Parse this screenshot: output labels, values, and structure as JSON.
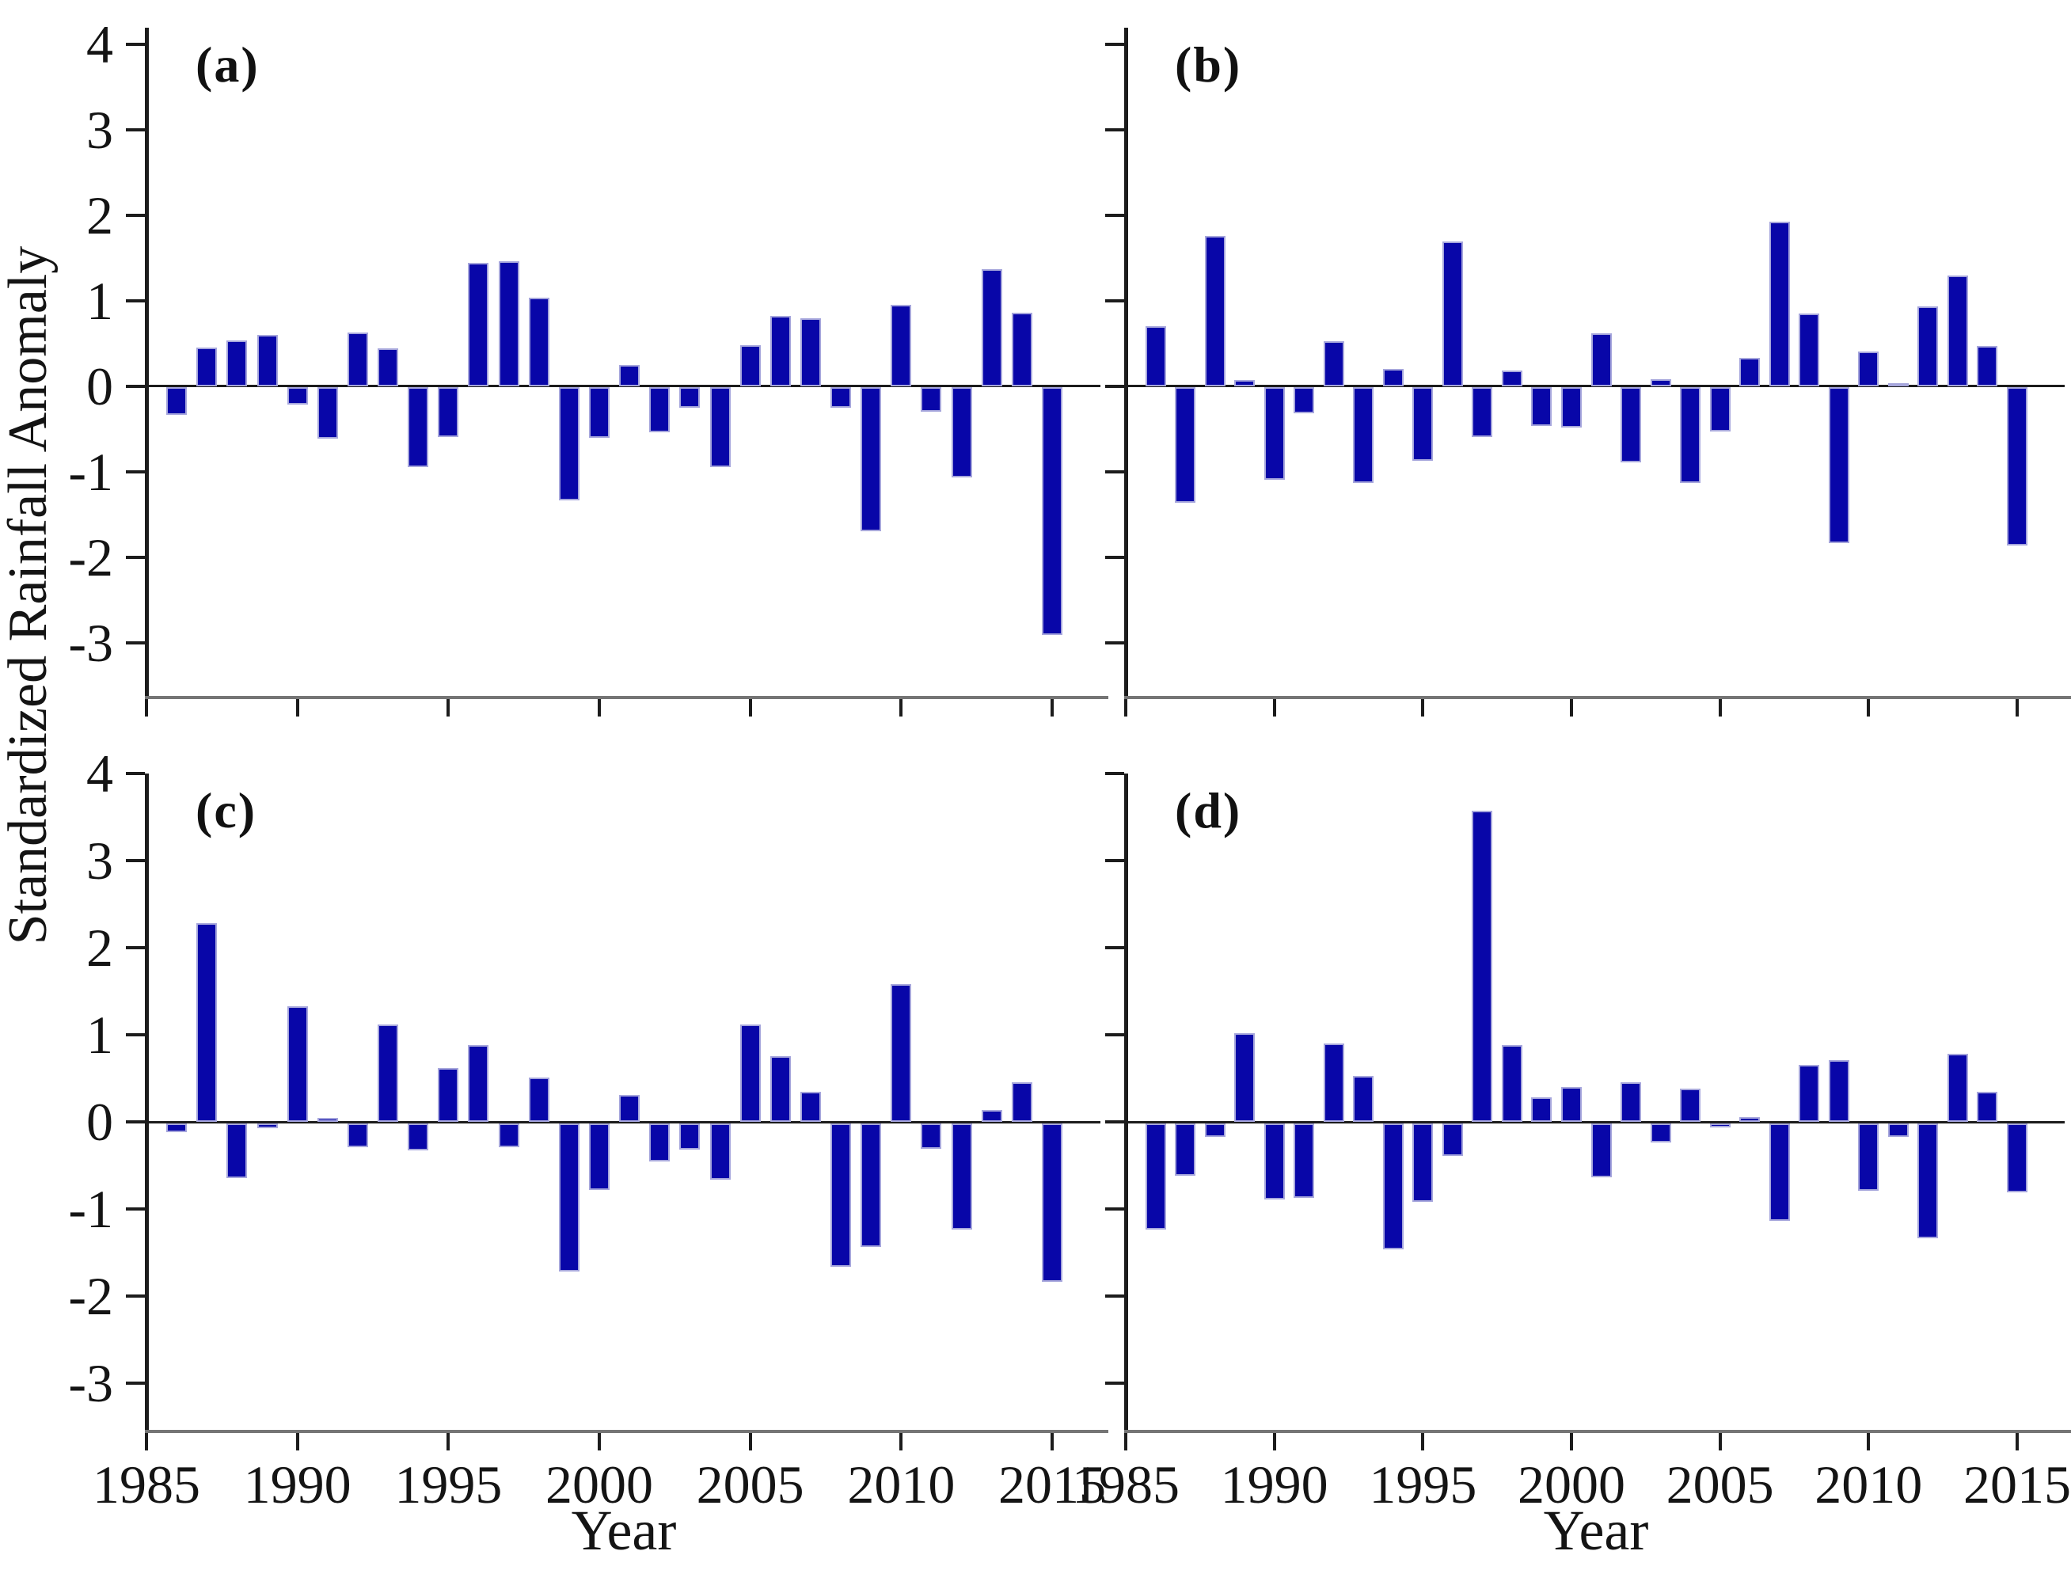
{
  "figure": {
    "y_axis_label": "Standardized Rainfall Anomaly",
    "x_axis_label": "Year",
    "bar_color": "#0806A8",
    "bar_edge_color": "#A6A6DC",
    "axis_color": "#1c1c1c",
    "frame_color": "#757575"
  },
  "chart_data": [
    {
      "type": "bar",
      "panel_label": "(a)",
      "title": "",
      "xlabel": "",
      "ylabel": "Standardized Rainfall Anomaly",
      "x": [
        1986,
        1987,
        1988,
        1989,
        1990,
        1991,
        1992,
        1993,
        1994,
        1995,
        1996,
        1997,
        1998,
        1999,
        2000,
        2001,
        2002,
        2003,
        2004,
        2005,
        2006,
        2007,
        2008,
        2009,
        2010,
        2011,
        2012,
        2013,
        2014,
        2015
      ],
      "values": [
        -0.32,
        0.45,
        0.53,
        0.6,
        -0.2,
        -0.6,
        0.63,
        0.44,
        -0.93,
        -0.58,
        1.44,
        1.46,
        1.03,
        -1.32,
        -0.59,
        0.25,
        -0.53,
        -0.24,
        -0.93,
        0.48,
        0.82,
        0.79,
        -0.24,
        -1.68,
        0.95,
        -0.29,
        -1.05,
        1.37,
        0.86,
        -2.9
      ],
      "ylim": [
        -3.66,
        4.19
      ],
      "yticks": [
        4,
        3,
        2,
        1,
        0,
        -1,
        -2,
        -3
      ],
      "xticks": [
        1985,
        1990,
        1995,
        2000,
        2005,
        2010,
        2015
      ],
      "show_ytick_labels": true,
      "show_xtick_labels": false,
      "grid": false,
      "legend": null
    },
    {
      "type": "bar",
      "panel_label": "(b)",
      "title": "",
      "xlabel": "",
      "ylabel": "",
      "x": [
        1986,
        1987,
        1988,
        1989,
        1990,
        1991,
        1992,
        1993,
        1994,
        1995,
        1996,
        1997,
        1998,
        1999,
        2000,
        2001,
        2002,
        2003,
        2004,
        2005,
        2006,
        2007,
        2008,
        2009,
        2010,
        2011,
        2012,
        2013,
        2014,
        2015
      ],
      "values": [
        0.7,
        -1.35,
        1.76,
        0.07,
        -1.08,
        -0.3,
        0.52,
        -1.12,
        0.2,
        -0.86,
        1.69,
        -0.58,
        0.18,
        -0.45,
        -0.47,
        0.62,
        -0.88,
        0.08,
        -1.12,
        -0.52,
        0.33,
        1.92,
        0.85,
        -1.82,
        0.4,
        0.03,
        0.93,
        1.29,
        0.47,
        -1.85
      ],
      "ylim": [
        -3.66,
        4.19
      ],
      "yticks": [
        4,
        3,
        2,
        1,
        0,
        -1,
        -2,
        -3
      ],
      "xticks": [
        1985,
        1990,
        1995,
        2000,
        2005,
        2010,
        2015
      ],
      "show_ytick_labels": false,
      "show_xtick_labels": false,
      "grid": false,
      "legend": null
    },
    {
      "type": "bar",
      "panel_label": "(c)",
      "title": "",
      "xlabel": "Year",
      "ylabel": "Standardized Rainfall Anomaly",
      "x": [
        1986,
        1987,
        1988,
        1989,
        1990,
        1991,
        1992,
        1993,
        1994,
        1995,
        1996,
        1997,
        1998,
        1999,
        2000,
        2001,
        2002,
        2003,
        2004,
        2005,
        2006,
        2007,
        2008,
        2009,
        2010,
        2011,
        2012,
        2013,
        2014,
        2015
      ],
      "values": [
        -0.1,
        2.28,
        -0.63,
        -0.06,
        1.33,
        0.05,
        -0.28,
        1.12,
        -0.31,
        0.62,
        0.88,
        -0.28,
        0.51,
        -1.7,
        -0.77,
        0.31,
        -0.44,
        -0.3,
        -0.65,
        1.12,
        0.76,
        0.35,
        -1.65,
        -1.42,
        1.58,
        -0.29,
        -1.22,
        0.14,
        0.46,
        -1.82
      ],
      "ylim": [
        -3.57,
        4.0
      ],
      "yticks": [
        4,
        3,
        2,
        1,
        0,
        -1,
        -2,
        -3
      ],
      "xticks": [
        1985,
        1990,
        1995,
        2000,
        2005,
        2010,
        2015
      ],
      "show_ytick_labels": true,
      "show_xtick_labels": true,
      "grid": false,
      "legend": null
    },
    {
      "type": "bar",
      "panel_label": "(d)",
      "title": "",
      "xlabel": "Year",
      "ylabel": "",
      "x": [
        1986,
        1987,
        1988,
        1989,
        1990,
        1991,
        1992,
        1993,
        1994,
        1995,
        1996,
        1997,
        1998,
        1999,
        2000,
        2001,
        2002,
        2003,
        2004,
        2005,
        2006,
        2007,
        2008,
        2009,
        2010,
        2011,
        2012,
        2013,
        2014,
        2015
      ],
      "values": [
        -1.22,
        -0.6,
        -0.16,
        1.02,
        -0.88,
        -0.86,
        0.9,
        0.53,
        -1.45,
        -0.9,
        -0.38,
        3.57,
        0.88,
        0.28,
        0.4,
        -0.62,
        0.46,
        -0.22,
        0.38,
        -0.05,
        0.06,
        -1.12,
        0.66,
        0.71,
        -0.78,
        -0.16,
        -1.32,
        0.78,
        0.35,
        -0.79
      ],
      "ylim": [
        -3.57,
        4.0
      ],
      "yticks": [
        4,
        3,
        2,
        1,
        0,
        -1,
        -2,
        -3
      ],
      "xticks": [
        1985,
        1990,
        1995,
        2000,
        2005,
        2010,
        2015
      ],
      "show_ytick_labels": false,
      "show_xtick_labels": true,
      "grid": false,
      "legend": null
    }
  ]
}
